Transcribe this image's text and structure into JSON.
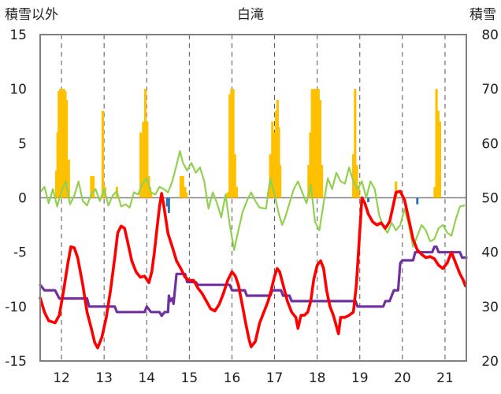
{
  "chart_data": {
    "type": "line",
    "title": "白滝",
    "y_left_label": "積雪以外",
    "y_right_label": "積雪",
    "y_left_range": [
      -15,
      15
    ],
    "y_left_ticks": [
      "15",
      "10",
      "5",
      "0",
      "-5",
      "-10",
      "-15"
    ],
    "y_right_range": [
      20,
      80
    ],
    "y_right_ticks": [
      "80",
      "70",
      "60",
      "50",
      "40",
      "30",
      "20"
    ],
    "x_range": [
      11.5,
      21.5
    ],
    "x_ticks": [
      "12",
      "13",
      "14",
      "15",
      "16",
      "17",
      "18",
      "19",
      "20",
      "21"
    ],
    "grid": "dashed vertical lines at each x tick",
    "colors": {
      "red_series": "#ff0000",
      "green_series": "#92d050",
      "purple_series": "#7030a0",
      "orange_bars": "#ffc000",
      "blue_bars": "#2e75b6",
      "frame": "#808080",
      "grid": "#555555"
    },
    "red_series_left_axis": [
      [
        11.5,
        -9.2
      ],
      [
        11.6,
        -10.5
      ],
      [
        11.7,
        -11.3
      ],
      [
        11.85,
        -11.5
      ],
      [
        11.95,
        -10.8
      ],
      [
        12.05,
        -8.5
      ],
      [
        12.15,
        -6
      ],
      [
        12.22,
        -4.5
      ],
      [
        12.3,
        -4.6
      ],
      [
        12.38,
        -5.5
      ],
      [
        12.5,
        -8
      ],
      [
        12.6,
        -10.5
      ],
      [
        12.7,
        -12
      ],
      [
        12.78,
        -13.3
      ],
      [
        12.85,
        -13.8
      ],
      [
        12.95,
        -12.8
      ],
      [
        13.05,
        -11
      ],
      [
        13.15,
        -8.5
      ],
      [
        13.25,
        -5.5
      ],
      [
        13.32,
        -3.2
      ],
      [
        13.4,
        -2.6
      ],
      [
        13.48,
        -2.8
      ],
      [
        13.55,
        -4
      ],
      [
        13.65,
        -5.8
      ],
      [
        13.75,
        -6.8
      ],
      [
        13.85,
        -7.3
      ],
      [
        13.95,
        -7.2
      ],
      [
        14.05,
        -7.8
      ],
      [
        14.12,
        -6.8
      ],
      [
        14.18,
        -5
      ],
      [
        14.25,
        -2.5
      ],
      [
        14.3,
        -0.8
      ],
      [
        14.35,
        0.4
      ],
      [
        14.4,
        -0.7
      ],
      [
        14.45,
        -2
      ],
      [
        14.5,
        -3.3
      ],
      [
        14.6,
        -4.5
      ],
      [
        14.7,
        -5.8
      ],
      [
        14.8,
        -6.5
      ],
      [
        14.9,
        -7.3
      ],
      [
        15.0,
        -7.6
      ],
      [
        15.1,
        -7.6
      ],
      [
        15.2,
        -8.3
      ],
      [
        15.3,
        -8.8
      ],
      [
        15.4,
        -9.5
      ],
      [
        15.5,
        -10.2
      ],
      [
        15.6,
        -10.4
      ],
      [
        15.7,
        -9.8
      ],
      [
        15.8,
        -8.8
      ],
      [
        15.9,
        -7.6
      ],
      [
        16.0,
        -6.8
      ],
      [
        16.08,
        -7.2
      ],
      [
        16.15,
        -8
      ],
      [
        16.25,
        -10
      ],
      [
        16.32,
        -11.5
      ],
      [
        16.4,
        -13
      ],
      [
        16.45,
        -13.7
      ],
      [
        16.55,
        -13.2
      ],
      [
        16.65,
        -11.5
      ],
      [
        16.75,
        -10.5
      ],
      [
        16.85,
        -9.5
      ],
      [
        16.92,
        -8.5
      ],
      [
        17.0,
        -7.2
      ],
      [
        17.06,
        -6.5
      ],
      [
        17.12,
        -6.8
      ],
      [
        17.2,
        -8
      ],
      [
        17.3,
        -9.5
      ],
      [
        17.4,
        -10.5
      ],
      [
        17.5,
        -11
      ],
      [
        17.55,
        -12
      ],
      [
        17.62,
        -10.8
      ],
      [
        17.7,
        -10.8
      ],
      [
        17.78,
        -10.5
      ],
      [
        17.85,
        -9.5
      ],
      [
        17.92,
        -7.5
      ],
      [
        18.0,
        -6.2
      ],
      [
        18.08,
        -5.8
      ],
      [
        18.15,
        -6.5
      ],
      [
        18.22,
        -8.5
      ],
      [
        18.3,
        -10
      ],
      [
        18.38,
        -10.8
      ],
      [
        18.45,
        -11.8
      ],
      [
        18.5,
        -12.5
      ],
      [
        18.55,
        -11
      ],
      [
        18.65,
        -11
      ],
      [
        18.75,
        -10.8
      ],
      [
        18.85,
        -10.5
      ],
      [
        18.92,
        -8
      ],
      [
        19.0,
        -3
      ],
      [
        19.05,
        0
      ],
      [
        19.12,
        -0.5
      ],
      [
        19.2,
        -1.5
      ],
      [
        19.3,
        -2.2
      ],
      [
        19.4,
        -2.5
      ],
      [
        19.5,
        -2.3
      ],
      [
        19.6,
        -2.8
      ],
      [
        19.7,
        -2.2
      ],
      [
        19.78,
        -0.8
      ],
      [
        19.85,
        0.5
      ],
      [
        19.95,
        0.6
      ],
      [
        20.05,
        -0.2
      ],
      [
        20.15,
        -2
      ],
      [
        20.25,
        -3.8
      ],
      [
        20.35,
        -4.8
      ],
      [
        20.45,
        -5.2
      ],
      [
        20.55,
        -5.5
      ],
      [
        20.65,
        -5.4
      ],
      [
        20.75,
        -5.6
      ],
      [
        20.85,
        -6.2
      ],
      [
        20.95,
        -6.5
      ],
      [
        21.05,
        -6
      ],
      [
        21.15,
        -5
      ],
      [
        21.25,
        -6
      ],
      [
        21.35,
        -7
      ],
      [
        21.42,
        -7.5
      ],
      [
        21.48,
        -8.1
      ]
    ],
    "green_series_left_axis": [
      [
        11.5,
        0.5
      ],
      [
        11.6,
        1
      ],
      [
        11.7,
        -0.5
      ],
      [
        11.8,
        0.8
      ],
      [
        11.9,
        -0.8
      ],
      [
        12.0,
        0.6
      ],
      [
        12.1,
        1.5
      ],
      [
        12.2,
        -0.6
      ],
      [
        12.3,
        0.2
      ],
      [
        12.4,
        1.5
      ],
      [
        12.5,
        -0.3
      ],
      [
        12.6,
        -0.7
      ],
      [
        12.7,
        0.3
      ],
      [
        12.8,
        0.8
      ],
      [
        12.9,
        -0.3
      ],
      [
        13.0,
        0.8
      ],
      [
        13.1,
        -0.7
      ],
      [
        13.2,
        0.2
      ],
      [
        13.3,
        0.6
      ],
      [
        13.4,
        -0.8
      ],
      [
        13.5,
        -0.6
      ],
      [
        13.6,
        -0.9
      ],
      [
        13.7,
        0.5
      ],
      [
        13.8,
        0.3
      ],
      [
        13.9,
        1.3
      ],
      [
        14.0,
        1.8
      ],
      [
        14.1,
        0.5
      ],
      [
        14.2,
        0.3
      ],
      [
        14.3,
        1
      ],
      [
        14.4,
        0.8
      ],
      [
        14.5,
        0.5
      ],
      [
        14.6,
        1.5
      ],
      [
        14.7,
        3
      ],
      [
        14.78,
        4.3
      ],
      [
        14.85,
        3.2
      ],
      [
        14.95,
        2.5
      ],
      [
        15.05,
        3.2
      ],
      [
        15.15,
        2.3
      ],
      [
        15.25,
        2.8
      ],
      [
        15.35,
        1.5
      ],
      [
        15.45,
        -1
      ],
      [
        15.55,
        0.5
      ],
      [
        15.65,
        -0.5
      ],
      [
        15.75,
        -1.8
      ],
      [
        15.85,
        0.3
      ],
      [
        15.95,
        -2.5
      ],
      [
        16.05,
        -4.8
      ],
      [
        16.15,
        -3
      ],
      [
        16.25,
        -1.3
      ],
      [
        16.35,
        -0.3
      ],
      [
        16.45,
        0.5
      ],
      [
        16.55,
        -0.3
      ],
      [
        16.65,
        -0.9
      ],
      [
        16.8,
        -1
      ],
      [
        16.9,
        1.8
      ],
      [
        17.0,
        0.3
      ],
      [
        17.1,
        -1.5
      ],
      [
        17.18,
        -2.5
      ],
      [
        17.25,
        -1.8
      ],
      [
        17.35,
        -0.5
      ],
      [
        17.45,
        0.8
      ],
      [
        17.55,
        1.5
      ],
      [
        17.65,
        0.5
      ],
      [
        17.75,
        -0.5
      ],
      [
        17.85,
        1.2
      ],
      [
        17.95,
        -2.2
      ],
      [
        18.05,
        -3
      ],
      [
        18.15,
        -0.5
      ],
      [
        18.25,
        1.8
      ],
      [
        18.35,
        0.8
      ],
      [
        18.45,
        2.3
      ],
      [
        18.55,
        1.5
      ],
      [
        18.65,
        1.3
      ],
      [
        18.75,
        2.8
      ],
      [
        18.85,
        1.5
      ],
      [
        18.95,
        0.8
      ],
      [
        19.05,
        1.5
      ],
      [
        19.15,
        0
      ],
      [
        19.25,
        1.5
      ],
      [
        19.35,
        0.8
      ],
      [
        19.45,
        -1.5
      ],
      [
        19.55,
        -2.7
      ],
      [
        19.65,
        -3.2
      ],
      [
        19.75,
        -2.3
      ],
      [
        19.85,
        -3
      ],
      [
        19.95,
        -2.5
      ],
      [
        20.05,
        -1
      ],
      [
        20.15,
        -2.5
      ],
      [
        20.25,
        -4.5
      ],
      [
        20.35,
        -3.5
      ],
      [
        20.45,
        -2.5
      ],
      [
        20.55,
        -3
      ],
      [
        20.65,
        -4
      ],
      [
        20.75,
        -3.8
      ],
      [
        20.85,
        -2.8
      ],
      [
        20.95,
        -2.5
      ],
      [
        21.05,
        -3.2
      ],
      [
        21.15,
        -3.5
      ],
      [
        21.25,
        -2
      ],
      [
        21.35,
        -0.8
      ],
      [
        21.45,
        -0.7
      ]
    ],
    "purple_series_right_axis": [
      [
        11.5,
        34
      ],
      [
        11.6,
        33
      ],
      [
        11.85,
        33
      ],
      [
        11.95,
        31.5
      ],
      [
        12.6,
        31.5
      ],
      [
        12.65,
        30
      ],
      [
        13.25,
        30
      ],
      [
        13.3,
        29
      ],
      [
        13.95,
        29
      ],
      [
        14.0,
        30
      ],
      [
        14.1,
        29
      ],
      [
        14.3,
        29
      ],
      [
        14.35,
        28.3
      ],
      [
        14.42,
        29
      ],
      [
        14.5,
        29
      ],
      [
        14.52,
        32
      ],
      [
        14.55,
        31
      ],
      [
        14.6,
        31.5
      ],
      [
        14.63,
        30.5
      ],
      [
        14.7,
        36
      ],
      [
        14.9,
        36
      ],
      [
        14.95,
        34.5
      ],
      [
        15.15,
        34.5
      ],
      [
        15.2,
        34
      ],
      [
        15.95,
        34
      ],
      [
        16.0,
        33
      ],
      [
        16.3,
        33
      ],
      [
        16.35,
        32
      ],
      [
        16.9,
        32
      ],
      [
        16.95,
        33
      ],
      [
        17.15,
        33
      ],
      [
        17.2,
        32
      ],
      [
        17.35,
        32
      ],
      [
        17.4,
        31
      ],
      [
        18.9,
        31
      ],
      [
        18.95,
        30
      ],
      [
        19.55,
        30
      ],
      [
        19.6,
        31
      ],
      [
        19.7,
        31
      ],
      [
        19.75,
        32
      ],
      [
        19.8,
        33
      ],
      [
        19.9,
        33
      ],
      [
        19.95,
        38
      ],
      [
        20.0,
        38.5
      ],
      [
        20.25,
        38.5
      ],
      [
        20.3,
        40
      ],
      [
        20.7,
        40
      ],
      [
        20.75,
        41
      ],
      [
        20.8,
        41
      ],
      [
        20.85,
        40
      ],
      [
        21.35,
        40
      ],
      [
        21.4,
        39
      ],
      [
        21.5,
        39
      ]
    ],
    "orange_bars_left_axis": [
      [
        11.88,
        2.5
      ],
      [
        11.91,
        6
      ],
      [
        11.94,
        9.8
      ],
      [
        11.97,
        10
      ],
      [
        12.0,
        10
      ],
      [
        12.03,
        10
      ],
      [
        12.06,
        10
      ],
      [
        12.09,
        9.8
      ],
      [
        12.12,
        9
      ],
      [
        12.17,
        3.5
      ],
      [
        12.7,
        2
      ],
      [
        12.75,
        2
      ],
      [
        12.97,
        8
      ],
      [
        13.02,
        1
      ],
      [
        13.3,
        1
      ],
      [
        13.86,
        6
      ],
      [
        13.92,
        7
      ],
      [
        13.97,
        10
      ],
      [
        14.01,
        7
      ],
      [
        14.05,
        2
      ],
      [
        14.08,
        1
      ],
      [
        14.1,
        0.5
      ],
      [
        14.8,
        2
      ],
      [
        14.85,
        2
      ],
      [
        14.9,
        1
      ],
      [
        14.93,
        0.5
      ],
      [
        15.9,
        0.5
      ],
      [
        15.95,
        9.5
      ],
      [
        15.99,
        10
      ],
      [
        16.03,
        10
      ],
      [
        16.07,
        4
      ],
      [
        16.11,
        1
      ],
      [
        16.85,
        0.5
      ],
      [
        16.9,
        4
      ],
      [
        16.95,
        7
      ],
      [
        17.0,
        6
      ],
      [
        17.04,
        8
      ],
      [
        17.07,
        9
      ],
      [
        17.1,
        6.5
      ],
      [
        17.13,
        3
      ],
      [
        17.8,
        3
      ],
      [
        17.84,
        6
      ],
      [
        17.88,
        10
      ],
      [
        17.92,
        10
      ],
      [
        17.95,
        10
      ],
      [
        17.99,
        10
      ],
      [
        18.03,
        10
      ],
      [
        18.07,
        9
      ],
      [
        18.11,
        3
      ],
      [
        18.85,
        4
      ],
      [
        18.89,
        10
      ],
      [
        18.93,
        3
      ],
      [
        18.97,
        1
      ],
      [
        19.85,
        1.5
      ],
      [
        20.76,
        1
      ],
      [
        20.8,
        10
      ],
      [
        20.84,
        8
      ],
      [
        20.88,
        7
      ]
    ],
    "blue_bars_left_axis": [
      [
        14.48,
        -0.8
      ],
      [
        14.52,
        -1.4
      ],
      [
        19.2,
        -0.4
      ],
      [
        20.35,
        -0.6
      ]
    ]
  }
}
